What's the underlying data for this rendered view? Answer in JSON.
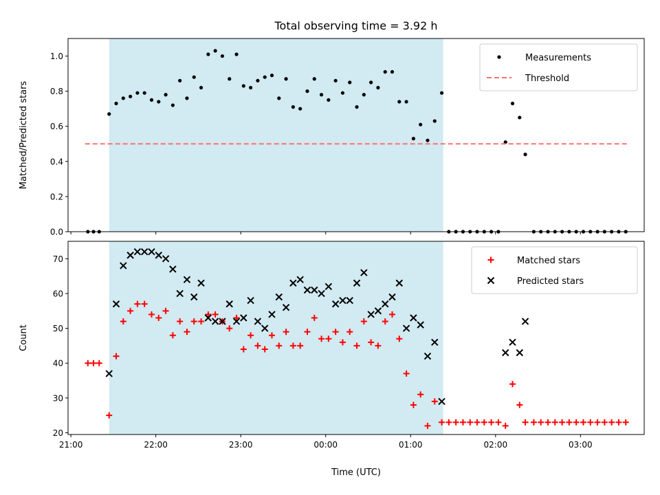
{
  "chart_data": [
    {
      "type": "scatter",
      "title": "Total observing time = 3.92 h",
      "xlabel": "",
      "ylabel": "Matched/Predicted stars",
      "xlim": [
        "20:58",
        "03:45"
      ],
      "ylim": [
        0,
        1.1
      ],
      "yticks": [
        0.0,
        0.2,
        0.4,
        0.6,
        0.8,
        1.0
      ],
      "yticklabels": [
        "0.0",
        "0.2",
        "0.4",
        "0.6",
        "0.8",
        "1.0"
      ],
      "legend_position": "top-right",
      "shaded_interval": {
        "start": "21:27",
        "end": "01:23",
        "color": "#add8e6"
      },
      "series": [
        {
          "name": "Measurements",
          "style": "dot",
          "color": "#000000",
          "points": [
            [
              "21:12",
              0
            ],
            [
              "21:16",
              0
            ],
            [
              "21:20",
              0
            ],
            [
              "21:27",
              0.67
            ],
            [
              "21:32",
              0.73
            ],
            [
              "21:37",
              0.76
            ],
            [
              "21:42",
              0.77
            ],
            [
              "21:47",
              0.79
            ],
            [
              "21:52",
              0.79
            ],
            [
              "21:57",
              0.75
            ],
            [
              "22:02",
              0.74
            ],
            [
              "22:07",
              0.78
            ],
            [
              "22:12",
              0.72
            ],
            [
              "22:17",
              0.86
            ],
            [
              "22:22",
              0.76
            ],
            [
              "22:27",
              0.88
            ],
            [
              "22:32",
              0.82
            ],
            [
              "22:37",
              1.01
            ],
            [
              "22:42",
              1.03
            ],
            [
              "22:47",
              1.0
            ],
            [
              "22:52",
              0.87
            ],
            [
              "22:57",
              1.01
            ],
            [
              "23:02",
              0.83
            ],
            [
              "23:07",
              0.82
            ],
            [
              "23:12",
              0.86
            ],
            [
              "23:17",
              0.88
            ],
            [
              "23:22",
              0.89
            ],
            [
              "23:27",
              0.76
            ],
            [
              "23:32",
              0.87
            ],
            [
              "23:37",
              0.71
            ],
            [
              "23:42",
              0.7
            ],
            [
              "23:47",
              0.8
            ],
            [
              "23:52",
              0.87
            ],
            [
              "23:57",
              0.78
            ],
            [
              "00:02",
              0.75
            ],
            [
              "00:07",
              0.86
            ],
            [
              "00:12",
              0.79
            ],
            [
              "00:17",
              0.85
            ],
            [
              "00:22",
              0.71
            ],
            [
              "00:27",
              0.78
            ],
            [
              "00:32",
              0.85
            ],
            [
              "00:37",
              0.82
            ],
            [
              "00:42",
              0.91
            ],
            [
              "00:47",
              0.91
            ],
            [
              "00:52",
              0.74
            ],
            [
              "00:57",
              0.74
            ],
            [
              "01:02",
              0.53
            ],
            [
              "01:07",
              0.61
            ],
            [
              "01:12",
              0.52
            ],
            [
              "01:17",
              0.63
            ],
            [
              "01:22",
              0.79
            ],
            [
              "01:27",
              0
            ],
            [
              "01:32",
              0
            ],
            [
              "01:37",
              0
            ],
            [
              "01:42",
              0
            ],
            [
              "01:47",
              0
            ],
            [
              "01:52",
              0
            ],
            [
              "01:57",
              0
            ],
            [
              "02:02",
              0
            ],
            [
              "02:07",
              0.51
            ],
            [
              "02:12",
              0.73
            ],
            [
              "02:17",
              0.65
            ],
            [
              "02:21",
              0.44
            ],
            [
              "02:27",
              0
            ],
            [
              "02:32",
              0
            ],
            [
              "02:37",
              0
            ],
            [
              "02:42",
              0
            ],
            [
              "02:47",
              0
            ],
            [
              "02:52",
              0
            ],
            [
              "02:57",
              0
            ],
            [
              "03:02",
              0
            ],
            [
              "03:07",
              0
            ],
            [
              "03:12",
              0
            ],
            [
              "03:17",
              0
            ],
            [
              "03:22",
              0
            ],
            [
              "03:27",
              0
            ],
            [
              "03:32",
              0
            ]
          ]
        },
        {
          "name": "Threshold",
          "style": "dashed-line",
          "color": "#ff7070",
          "points": [
            [
              "21:10",
              0.5
            ],
            [
              "03:34",
              0.5
            ]
          ]
        }
      ]
    },
    {
      "type": "scatter",
      "title": "",
      "xlabel": "Time (UTC)",
      "ylabel": "Count",
      "xlim": [
        "20:58",
        "03:45"
      ],
      "ylim": [
        19.5,
        75
      ],
      "yticks": [
        20,
        30,
        40,
        50,
        60,
        70
      ],
      "yticklabels": [
        "20",
        "30",
        "40",
        "50",
        "60",
        "70"
      ],
      "xticks": [
        "21:00",
        "22:00",
        "23:00",
        "00:00",
        "01:00",
        "02:00",
        "03:00"
      ],
      "xticklabels": [
        "21:00",
        "22:00",
        "23:00",
        "00:00",
        "01:00",
        "02:00",
        "03:00"
      ],
      "legend_position": "top-right",
      "shaded_interval": {
        "start": "21:27",
        "end": "01:23",
        "color": "#add8e6"
      },
      "series": [
        {
          "name": "Matched stars",
          "style": "plus",
          "color": "#ff0000",
          "points": [
            [
              "21:12",
              40
            ],
            [
              "21:16",
              40
            ],
            [
              "21:20",
              40
            ],
            [
              "21:27",
              25
            ],
            [
              "21:32",
              42
            ],
            [
              "21:37",
              52
            ],
            [
              "21:42",
              55
            ],
            [
              "21:47",
              57
            ],
            [
              "21:52",
              57
            ],
            [
              "21:57",
              54
            ],
            [
              "22:02",
              53
            ],
            [
              "22:07",
              55
            ],
            [
              "22:12",
              48
            ],
            [
              "22:17",
              52
            ],
            [
              "22:22",
              49
            ],
            [
              "22:27",
              52
            ],
            [
              "22:32",
              52
            ],
            [
              "22:37",
              54
            ],
            [
              "22:42",
              54
            ],
            [
              "22:47",
              52
            ],
            [
              "22:52",
              50
            ],
            [
              "22:57",
              53
            ],
            [
              "23:02",
              44
            ],
            [
              "23:07",
              48
            ],
            [
              "23:12",
              45
            ],
            [
              "23:17",
              44
            ],
            [
              "23:22",
              48
            ],
            [
              "23:27",
              45
            ],
            [
              "23:32",
              49
            ],
            [
              "23:37",
              45
            ],
            [
              "23:42",
              45
            ],
            [
              "23:47",
              49
            ],
            [
              "23:52",
              53
            ],
            [
              "23:57",
              47
            ],
            [
              "00:02",
              47
            ],
            [
              "00:07",
              49
            ],
            [
              "00:12",
              46
            ],
            [
              "00:17",
              49
            ],
            [
              "00:22",
              45
            ],
            [
              "00:27",
              52
            ],
            [
              "00:32",
              46
            ],
            [
              "00:37",
              45
            ],
            [
              "00:42",
              52
            ],
            [
              "00:47",
              54
            ],
            [
              "00:52",
              47
            ],
            [
              "00:57",
              37
            ],
            [
              "01:02",
              28
            ],
            [
              "01:07",
              31
            ],
            [
              "01:12",
              22
            ],
            [
              "01:17",
              29
            ],
            [
              "01:22",
              23
            ],
            [
              "01:27",
              23
            ],
            [
              "01:32",
              23
            ],
            [
              "01:37",
              23
            ],
            [
              "01:42",
              23
            ],
            [
              "01:47",
              23
            ],
            [
              "01:52",
              23
            ],
            [
              "01:57",
              23
            ],
            [
              "02:02",
              23
            ],
            [
              "02:07",
              22
            ],
            [
              "02:12",
              34
            ],
            [
              "02:17",
              28
            ],
            [
              "02:21",
              23
            ],
            [
              "02:27",
              23
            ],
            [
              "02:32",
              23
            ],
            [
              "02:37",
              23
            ],
            [
              "02:42",
              23
            ],
            [
              "02:47",
              23
            ],
            [
              "02:52",
              23
            ],
            [
              "02:57",
              23
            ],
            [
              "03:02",
              23
            ],
            [
              "03:07",
              23
            ],
            [
              "03:12",
              23
            ],
            [
              "03:17",
              23
            ],
            [
              "03:22",
              23
            ],
            [
              "03:27",
              23
            ],
            [
              "03:32",
              23
            ]
          ]
        },
        {
          "name": "Predicted stars",
          "style": "x",
          "color": "#000000",
          "points": [
            [
              "21:27",
              37
            ],
            [
              "21:32",
              57
            ],
            [
              "21:37",
              68
            ],
            [
              "21:42",
              71
            ],
            [
              "21:47",
              72
            ],
            [
              "21:52",
              72
            ],
            [
              "21:57",
              72
            ],
            [
              "22:02",
              71
            ],
            [
              "22:07",
              70
            ],
            [
              "22:12",
              67
            ],
            [
              "22:17",
              60
            ],
            [
              "22:22",
              64
            ],
            [
              "22:27",
              59
            ],
            [
              "22:32",
              63
            ],
            [
              "22:37",
              53
            ],
            [
              "22:42",
              52
            ],
            [
              "22:47",
              52
            ],
            [
              "22:52",
              57
            ],
            [
              "22:57",
              52
            ],
            [
              "23:02",
              53
            ],
            [
              "23:07",
              58
            ],
            [
              "23:12",
              52
            ],
            [
              "23:17",
              50
            ],
            [
              "23:22",
              54
            ],
            [
              "23:27",
              59
            ],
            [
              "23:32",
              56
            ],
            [
              "23:37",
              63
            ],
            [
              "23:42",
              64
            ],
            [
              "23:47",
              61
            ],
            [
              "23:52",
              61
            ],
            [
              "23:57",
              60
            ],
            [
              "00:02",
              62
            ],
            [
              "00:07",
              57
            ],
            [
              "00:12",
              58
            ],
            [
              "00:17",
              58
            ],
            [
              "00:22",
              63
            ],
            [
              "00:27",
              66
            ],
            [
              "00:32",
              54
            ],
            [
              "00:37",
              55
            ],
            [
              "00:42",
              57
            ],
            [
              "00:47",
              59
            ],
            [
              "00:52",
              63
            ],
            [
              "00:57",
              50
            ],
            [
              "01:02",
              53
            ],
            [
              "01:07",
              51
            ],
            [
              "01:12",
              42
            ],
            [
              "01:17",
              46
            ],
            [
              "01:22",
              29
            ],
            [
              "02:07",
              43
            ],
            [
              "02:12",
              46
            ],
            [
              "02:17",
              43
            ],
            [
              "02:21",
              52
            ]
          ]
        }
      ]
    }
  ]
}
